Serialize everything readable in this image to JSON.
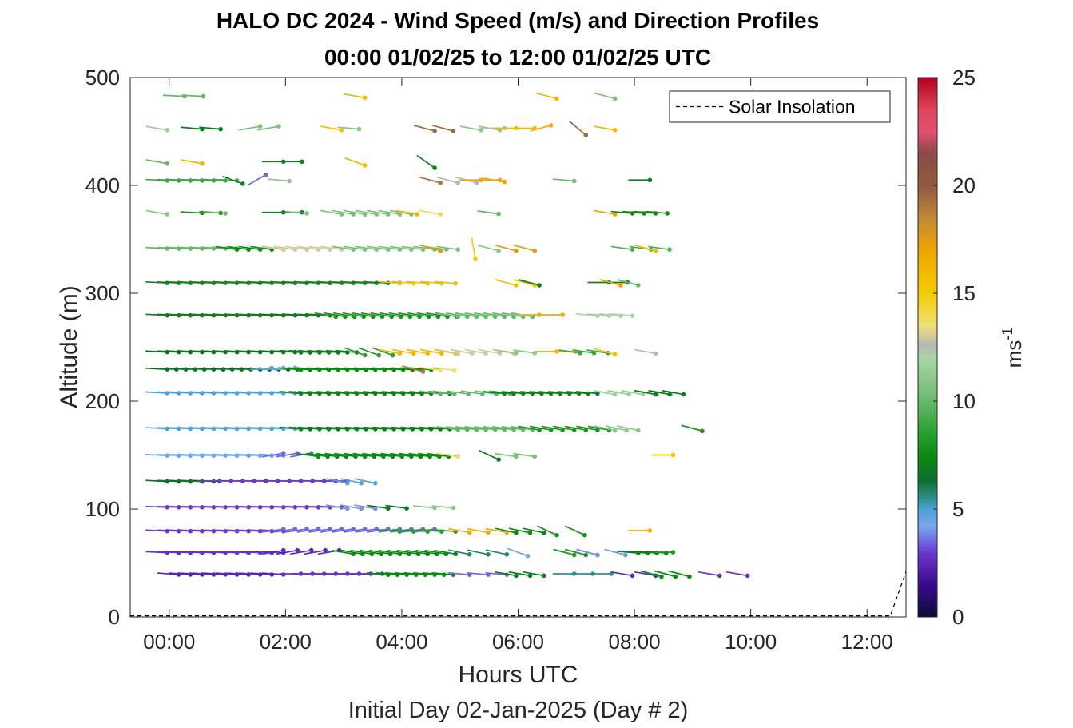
{
  "chart_data": {
    "type": "wind-barb-profile",
    "title": "HALO DC 2024 - Wind Speed (m/s) and Direction Profiles",
    "subtitle": "00:00 01/02/25 to 12:00 01/02/25  UTC",
    "xlabel": "Hours UTC",
    "xlabel2": "Initial Day 02-Jan-2025 (Day # 2)",
    "ylabel": "Altitude (m)",
    "x_ticks": [
      "00:00",
      "02:00",
      "04:00",
      "06:00",
      "08:00",
      "10:00",
      "12:00"
    ],
    "x_tick_hours": [
      0,
      2,
      4,
      6,
      8,
      10,
      12
    ],
    "xlim": [
      -0.67,
      12.67
    ],
    "y_ticks": [
      "0",
      "100",
      "200",
      "300",
      "400",
      "500"
    ],
    "ylim": [
      0,
      500
    ],
    "colorbar": {
      "label": "ms",
      "exponent": "-1",
      "ticks": [
        "0",
        "5",
        "10",
        "15",
        "20",
        "25"
      ],
      "range": [
        0,
        25
      ]
    },
    "legend": {
      "entries": [
        "Solar Insolation"
      ],
      "location": "top-right"
    },
    "altitudes": [
      40,
      60,
      80,
      102,
      126,
      150,
      175,
      208,
      230,
      246,
      280,
      310,
      342,
      375,
      405,
      422,
      453,
      483
    ],
    "series": [
      {
        "alt": 40,
        "segments": [
          [
            0.0,
            1.8,
            2.4,
            4,
            5
          ],
          [
            2.1,
            3.6,
            2.8,
            0,
            5
          ],
          [
            3.6,
            4.8,
            7.5,
            5,
            4
          ],
          [
            5.0,
            5.8,
            3.5,
            5,
            8
          ],
          [
            5.8,
            6.5,
            7.0,
            10,
            6
          ],
          [
            6.8,
            7.5,
            5.5,
            0,
            8
          ],
          [
            7.8,
            8.2,
            2.5,
            10,
            10
          ],
          [
            8.3,
            8.8,
            7.5,
            15,
            6
          ],
          [
            9.3,
            9.8,
            2.8,
            10,
            12
          ]
        ]
      },
      {
        "alt": 60,
        "segments": [
          [
            -0.2,
            1.8,
            2.8,
            3,
            5
          ],
          [
            1.8,
            2.9,
            2.5,
            -10,
            6
          ],
          [
            3.0,
            4.8,
            7.5,
            10,
            4
          ],
          [
            5.0,
            5.8,
            5.8,
            12,
            8
          ],
          [
            6.0,
            6.5,
            4.5,
            20,
            15
          ],
          [
            6.8,
            7.2,
            8.0,
            15,
            5
          ],
          [
            7.2,
            7.8,
            4.0,
            15,
            12
          ],
          [
            7.9,
            8.5,
            7.0,
            5,
            4
          ],
          [
            8.5,
            8.8,
            8.0,
            0,
            8
          ]
        ]
      },
      {
        "alt": 80,
        "segments": [
          [
            -0.2,
            1.8,
            3.0,
            3,
            5
          ],
          [
            1.8,
            4.5,
            3.5,
            -8,
            5
          ],
          [
            3.8,
            4.8,
            8.5,
            5,
            6
          ],
          [
            5.0,
            5.8,
            16.5,
            10,
            8
          ],
          [
            5.8,
            6.5,
            7.5,
            12,
            6
          ],
          [
            6.5,
            7.0,
            8.0,
            25,
            12
          ],
          [
            8.1,
            8.5,
            16.5,
            0,
            12
          ]
        ]
      },
      {
        "alt": 102,
        "segments": [
          [
            -0.2,
            2.9,
            3.0,
            2,
            5
          ],
          [
            2.9,
            3.6,
            4.0,
            10,
            6
          ],
          [
            3.6,
            4.0,
            6.5,
            8,
            8
          ],
          [
            4.4,
            4.8,
            11.0,
            5,
            8
          ]
        ]
      },
      {
        "alt": 126,
        "segments": [
          [
            -0.2,
            0.7,
            6.5,
            3,
            5
          ],
          [
            0.7,
            2.9,
            3.0,
            1,
            5
          ],
          [
            2.9,
            3.5,
            4.8,
            12,
            6
          ]
        ]
      },
      {
        "alt": 150,
        "segments": [
          [
            -0.2,
            1.8,
            4.5,
            3,
            5
          ],
          [
            1.8,
            2.4,
            3.5,
            -10,
            6
          ],
          [
            2.4,
            4.8,
            7.5,
            8,
            4
          ],
          [
            4.8,
            5.1,
            13.5,
            10,
            8
          ],
          [
            5.5,
            5.8,
            7.0,
            25,
            8
          ],
          [
            5.8,
            6.2,
            10.5,
            8,
            8
          ],
          [
            8.5,
            8.8,
            15.5,
            0,
            8
          ]
        ]
      },
      {
        "alt": 175,
        "segments": [
          [
            -0.2,
            2.1,
            5.0,
            3,
            5
          ],
          [
            2.1,
            4.8,
            7.0,
            5,
            4
          ],
          [
            4.8,
            6.2,
            10.0,
            8,
            4
          ],
          [
            6.2,
            7.5,
            8.0,
            10,
            5
          ],
          [
            7.5,
            8.0,
            11.0,
            12,
            5
          ],
          [
            9.0,
            9.5,
            8.0,
            15,
            20
          ]
        ]
      },
      {
        "alt": 208,
        "segments": [
          [
            -0.2,
            2.1,
            5.0,
            3,
            5
          ],
          [
            2.1,
            4.8,
            7.0,
            5,
            4
          ],
          [
            4.5,
            5.8,
            10.0,
            8,
            6
          ],
          [
            5.6,
            7.2,
            7.0,
            5,
            4
          ],
          [
            7.5,
            8.5,
            11.5,
            10,
            6
          ],
          [
            8.2,
            8.8,
            7.0,
            10,
            6
          ]
        ]
      },
      {
        "alt": 230,
        "segments": [
          [
            -0.2,
            2.1,
            6.5,
            3,
            4
          ],
          [
            1.6,
            2.1,
            4.5,
            -5,
            5
          ],
          [
            2.1,
            4.5,
            7.5,
            5,
            4
          ],
          [
            4.2,
            4.5,
            19.0,
            15,
            8
          ],
          [
            4.5,
            4.8,
            13.5,
            8,
            6
          ]
        ]
      },
      {
        "alt": 246,
        "segments": [
          [
            -0.2,
            2.1,
            6.5,
            3,
            5
          ],
          [
            2.1,
            3.2,
            7.0,
            5,
            4
          ],
          [
            3.2,
            3.8,
            8.5,
            20,
            6
          ],
          [
            3.8,
            4.8,
            16.0,
            10,
            6
          ],
          [
            4.8,
            5.8,
            13.0,
            10,
            6
          ],
          [
            5.8,
            6.2,
            11.0,
            8,
            8
          ],
          [
            6.5,
            7.0,
            16.0,
            0,
            8
          ],
          [
            6.9,
            7.4,
            9.0,
            8,
            6
          ],
          [
            7.5,
            7.8,
            15.5,
            15,
            8
          ],
          [
            8.2,
            8.5,
            12.5,
            10,
            8
          ]
        ]
      },
      {
        "alt": 280,
        "segments": [
          [
            -0.2,
            2.7,
            7.0,
            3,
            5
          ],
          [
            2.7,
            4.8,
            8.0,
            10,
            4
          ],
          [
            4.8,
            6.2,
            10.0,
            10,
            4
          ],
          [
            6.2,
            6.8,
            16.5,
            0,
            10
          ],
          [
            7.2,
            7.8,
            12.0,
            5,
            5
          ]
        ]
      },
      {
        "alt": 310,
        "segments": [
          [
            -0.2,
            3.8,
            7.5,
            3,
            5
          ],
          [
            3.8,
            4.8,
            15.5,
            5,
            6
          ],
          [
            5.8,
            6.2,
            15.5,
            15,
            8
          ],
          [
            6.2,
            6.5,
            7.0,
            15,
            8
          ],
          [
            7.4,
            7.8,
            7.5,
            0,
            8
          ],
          [
            7.6,
            7.9,
            17.0,
            15,
            8
          ],
          [
            7.9,
            8.2,
            10.0,
            15,
            8
          ]
        ]
      },
      {
        "alt": 342,
        "segments": [
          [
            -0.2,
            1.0,
            10.0,
            3,
            5
          ],
          [
            1.0,
            1.8,
            7.5,
            8,
            5
          ],
          [
            1.8,
            3.0,
            13.0,
            8,
            5
          ],
          [
            3.0,
            4.8,
            10.5,
            8,
            5
          ],
          [
            4.5,
            4.8,
            17.5,
            15,
            8
          ],
          [
            5.1,
            5.1,
            15.0,
            80,
            12
          ],
          [
            5.5,
            5.8,
            11.0,
            15,
            8
          ],
          [
            5.8,
            6.2,
            17.5,
            15,
            8
          ],
          [
            7.8,
            8.5,
            9.5,
            8,
            8
          ],
          [
            8.2,
            8.5,
            15.5,
            15,
            8
          ]
        ]
      },
      {
        "alt": 375,
        "segments": [
          [
            -0.2,
            0.1,
            11.0,
            10,
            8
          ],
          [
            0.4,
            0.8,
            8.0,
            3,
            8
          ],
          [
            0.8,
            1.1,
            10.0,
            5,
            8
          ],
          [
            1.8,
            2.2,
            7.0,
            0,
            8
          ],
          [
            2.2,
            2.5,
            10.5,
            5,
            8
          ],
          [
            2.8,
            4.0,
            10.5,
            10,
            5
          ],
          [
            4.1,
            4.4,
            16.0,
            10,
            8
          ],
          [
            4.5,
            4.8,
            14.0,
            10,
            8
          ],
          [
            5.5,
            5.8,
            10.0,
            8,
            8
          ],
          [
            7.5,
            7.8,
            17.0,
            10,
            8
          ],
          [
            7.8,
            8.5,
            7.5,
            5,
            5
          ]
        ]
      },
      {
        "alt": 405,
        "segments": [
          [
            -0.2,
            1.1,
            9.0,
            3,
            5
          ],
          [
            1.1,
            1.4,
            7.0,
            20,
            8
          ],
          [
            1.5,
            1.8,
            3.5,
            -30,
            10
          ],
          [
            1.9,
            2.2,
            11.0,
            5,
            8
          ],
          [
            4.5,
            4.8,
            19.0,
            15,
            8
          ],
          [
            4.8,
            5.2,
            12.5,
            15,
            8
          ],
          [
            5.2,
            5.6,
            17.0,
            0,
            8
          ],
          [
            5.6,
            5.8,
            17.0,
            10,
            8
          ],
          [
            6.8,
            7.1,
            10.0,
            5,
            8
          ],
          [
            8.1,
            8.4,
            7.0,
            0,
            8
          ]
        ]
      },
      {
        "alt": 422,
        "segments": [
          [
            -0.2,
            0.1,
            10.0,
            10,
            8
          ],
          [
            0.4,
            0.7,
            16.0,
            10,
            8
          ],
          [
            1.8,
            2.2,
            7.0,
            0,
            8
          ],
          [
            3.2,
            3.5,
            16.0,
            20,
            8
          ],
          [
            4.4,
            4.6,
            7.0,
            35,
            10
          ]
        ]
      },
      {
        "alt": 453,
        "segments": [
          [
            -0.2,
            0.1,
            11.5,
            10,
            8
          ],
          [
            0.4,
            0.8,
            7.0,
            5,
            8
          ],
          [
            1.4,
            1.8,
            10.5,
            -10,
            8
          ],
          [
            2.8,
            3.1,
            15.5,
            10,
            8
          ],
          [
            3.1,
            3.4,
            11.0,
            5,
            8
          ],
          [
            4.4,
            4.8,
            19.5,
            15,
            8
          ],
          [
            5.2,
            5.8,
            11.0,
            10,
            8
          ],
          [
            5.6,
            5.8,
            12.5,
            0,
            8
          ],
          [
            5.8,
            6.2,
            16.0,
            0,
            8
          ],
          [
            6.4,
            6.7,
            16.5,
            -15,
            8
          ],
          [
            7.0,
            7.1,
            19.5,
            40,
            12
          ],
          [
            7.5,
            7.8,
            16.0,
            10,
            8
          ]
        ]
      },
      {
        "alt": 483,
        "segments": [
          [
            0.1,
            0.7,
            10.0,
            3,
            8
          ],
          [
            3.2,
            3.5,
            16.0,
            10,
            8
          ],
          [
            6.5,
            6.8,
            16.0,
            15,
            8
          ],
          [
            7.5,
            7.8,
            10.5,
            15,
            8
          ]
        ]
      }
    ],
    "solar_insolation": {
      "style": "dashed",
      "x": [
        -0.67,
        12.4,
        12.67
      ],
      "y": [
        1,
        1,
        42
      ]
    }
  }
}
